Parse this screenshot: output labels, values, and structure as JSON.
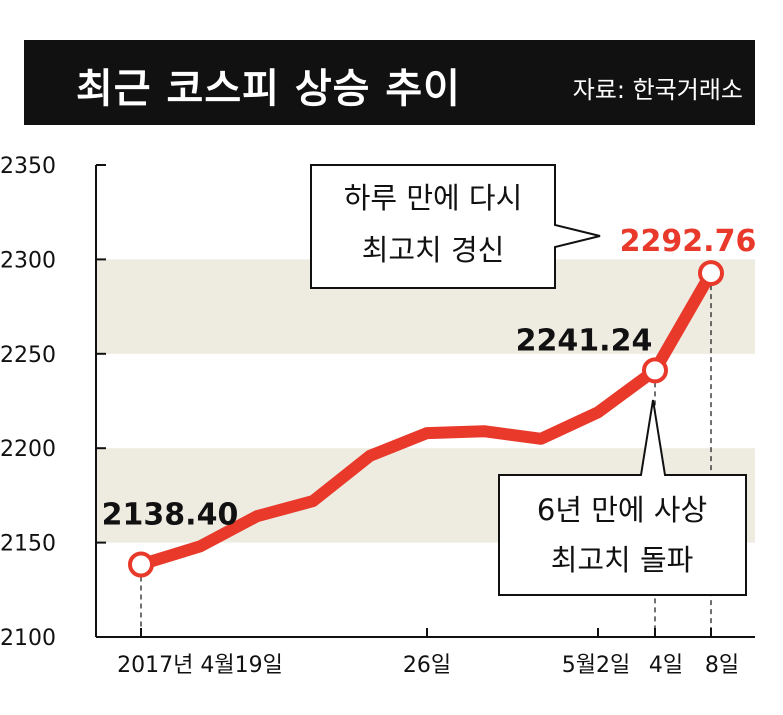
{
  "header": {
    "title": "최근 코스피 상승 추이",
    "source": "자료: 한국거래소"
  },
  "colors": {
    "header_bg": "#111111",
    "band": "#eeebe1",
    "line": "#e8392a",
    "highlight_label": "#e8392a",
    "text": "#111111"
  },
  "chart_data": {
    "type": "line",
    "title": "최근 코스피 상승 추이",
    "ylim": [
      2100,
      2350
    ],
    "yticks": [
      "2100",
      "2150",
      "2200",
      "2250",
      "2300",
      "2350"
    ],
    "x_tick_labels": [
      "2017년 4월19일",
      "26일",
      "5월2일",
      "4일",
      "8일"
    ],
    "series": [
      {
        "values": [
          2138.4,
          2148,
          2164,
          2172,
          2196,
          2208,
          2209,
          2205,
          2219,
          2241.24,
          2292.76
        ]
      }
    ],
    "data_labels": [
      "2138.40",
      "2241.24",
      "2292.76"
    ],
    "grid": "horizontal bands",
    "legend": "none"
  },
  "callouts": {
    "top": [
      "하루 만에 다시",
      "최고치 경신"
    ],
    "bottom": [
      "6년 만에 사상",
      "최고치 돌파"
    ]
  }
}
